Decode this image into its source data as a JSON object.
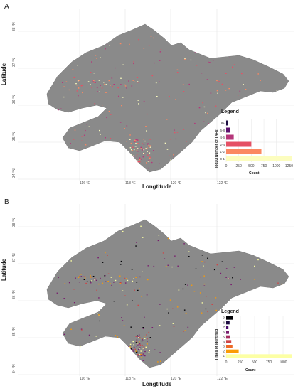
{
  "axis": {
    "xlabel": "Longtitude",
    "ylabel": "Latitude",
    "lon_ticks": [
      "116 °E",
      "118 °E",
      "120 °E",
      "122 °E"
    ],
    "lat_ticks": [
      "38 °N",
      "37 °N",
      "36 °N",
      "35 °N",
      "34 °N"
    ]
  },
  "panels": [
    {
      "letter": "A"
    },
    {
      "letter": "B"
    }
  ],
  "colors": {
    "land": "#8a8a8a",
    "grid": "#e4e4e4"
  },
  "chart_data": [
    {
      "type": "bar",
      "title": "Legend",
      "xlabel": "Count",
      "ylabel": "log10(Number of TAFs)",
      "categories": [
        "8+",
        "6-8",
        "4-6",
        "2-4",
        "1-2",
        "0-1"
      ],
      "values": [
        30,
        80,
        150,
        500,
        700,
        1300
      ],
      "colors": [
        "#1b0c41",
        "#5c126e",
        "#b5367a",
        "#e55064",
        "#fb8861",
        "#fcfdbf"
      ],
      "xticks": [
        "0",
        "250",
        "500",
        "750",
        "1000",
        "1250"
      ],
      "xlim": [
        0,
        1300
      ],
      "legend_position": "bottom-right"
    },
    {
      "type": "bar",
      "title": "Legend",
      "xlabel": "Count",
      "ylabel": "Times of identified",
      "categories": [
        "9",
        "8",
        "7",
        "6",
        "5",
        "4",
        "3",
        "2",
        "1"
      ],
      "values": [
        120,
        60,
        40,
        50,
        70,
        90,
        110,
        220,
        1150
      ],
      "colors": [
        "#000004",
        "#1b0c41",
        "#4a0c6b",
        "#781c6d",
        "#a52c60",
        "#cf4446",
        "#ed6925",
        "#fb9b06",
        "#fcffa4"
      ],
      "xticks": [
        "0",
        "250",
        "500",
        "750",
        "1000"
      ],
      "xlim": [
        0,
        1150
      ],
      "legend_position": "bottom-right"
    }
  ]
}
